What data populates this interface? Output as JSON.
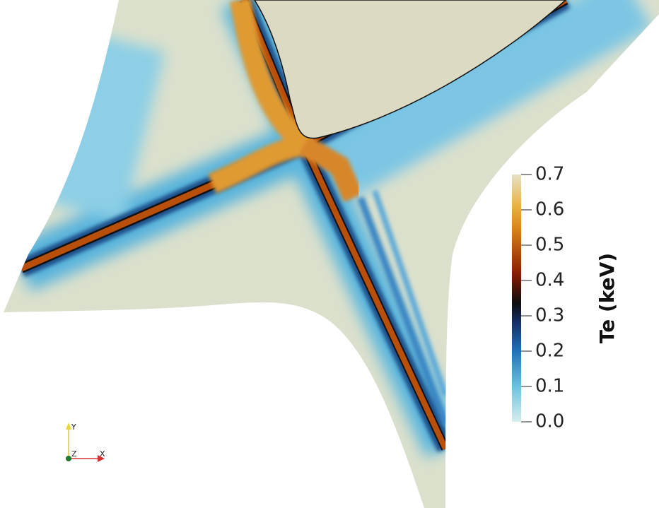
{
  "colorbar": {
    "title": "Te (keV)",
    "range": [
      0,
      0.7
    ],
    "ticks": [
      {
        "value": 0,
        "label": "0.0"
      },
      {
        "value": 0.1,
        "label": "0.1"
      },
      {
        "value": 0.2,
        "label": "0.2"
      },
      {
        "value": 0.3,
        "label": "0.3"
      },
      {
        "value": 0.4,
        "label": "0.4"
      },
      {
        "value": 0.5,
        "label": "0.5"
      },
      {
        "value": 0.6,
        "label": "0.6"
      },
      {
        "value": 0.7,
        "label": "0.7"
      }
    ]
  },
  "orientation_axes": {
    "y": "Y",
    "z": "Z",
    "x": "X"
  }
}
